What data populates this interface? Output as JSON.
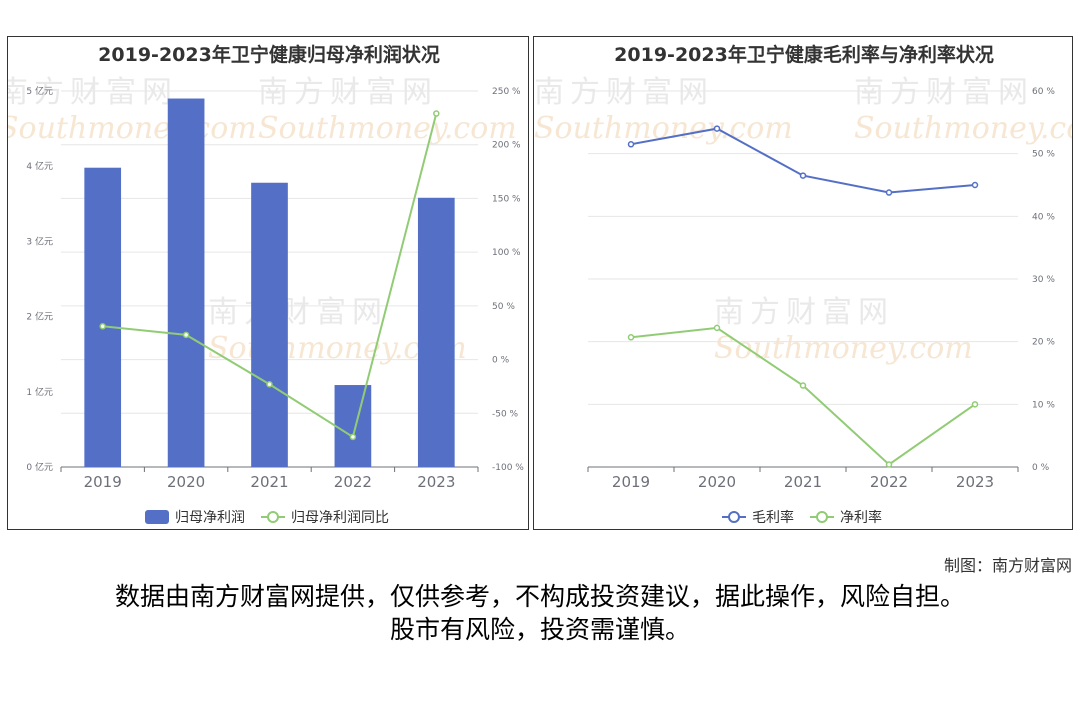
{
  "chart_data": [
    {
      "type": "bar+line",
      "title": "2019-2023年卫宁健康归母净利润状况",
      "categories": [
        "2019",
        "2020",
        "2021",
        "2022",
        "2023"
      ],
      "y_left": {
        "ticks": [
          "0 亿元",
          "1 亿元",
          "2 亿元",
          "3 亿元",
          "4 亿元",
          "5 亿元"
        ],
        "ylim": [
          0,
          5
        ]
      },
      "y_right": {
        "ticks": [
          "-100 %",
          "-50 %",
          "0 %",
          "50 %",
          "100 %",
          "150 %",
          "200 %",
          "250 %"
        ],
        "ylim": [
          -100,
          250
        ]
      },
      "series": [
        {
          "name": "归母净利润",
          "type": "bar",
          "axis": "left",
          "color": "#5470c6",
          "values": [
            3.98,
            4.9,
            3.78,
            1.09,
            3.58
          ]
        },
        {
          "name": "归母净利润同比",
          "type": "line",
          "axis": "right",
          "color": "#91cc75",
          "values": [
            31,
            23,
            -23,
            -72,
            229
          ]
        }
      ],
      "legend_position": "bottom-center",
      "grid": true
    },
    {
      "type": "line",
      "title": "2019-2023年卫宁健康毛利率与净利率状况",
      "categories": [
        "2019",
        "2020",
        "2021",
        "2022",
        "2023"
      ],
      "y_right": {
        "ticks": [
          "0 %",
          "10 %",
          "20 %",
          "30 %",
          "40 %",
          "50 %",
          "60 %"
        ],
        "ylim": [
          0,
          60
        ]
      },
      "series": [
        {
          "name": "毛利率",
          "type": "line",
          "axis": "right",
          "color": "#5470c6",
          "values": [
            51.5,
            54.0,
            46.5,
            43.8,
            45.0
          ]
        },
        {
          "name": "净利率",
          "type": "line",
          "axis": "right",
          "color": "#91cc75",
          "values": [
            20.7,
            22.2,
            13.0,
            0.4,
            10.0
          ]
        }
      ],
      "legend_position": "bottom-center",
      "grid": true
    }
  ],
  "watermark": {
    "cn": "南方财富网",
    "en": "Southmoney.com"
  },
  "credit": "制图：南方财富网",
  "disclaimer": {
    "line1": "数据由南方财富网提供，仅供参考，不构成投资建议，据此操作，风险自担。",
    "line2": "股市有风险，投资需谨慎。"
  }
}
